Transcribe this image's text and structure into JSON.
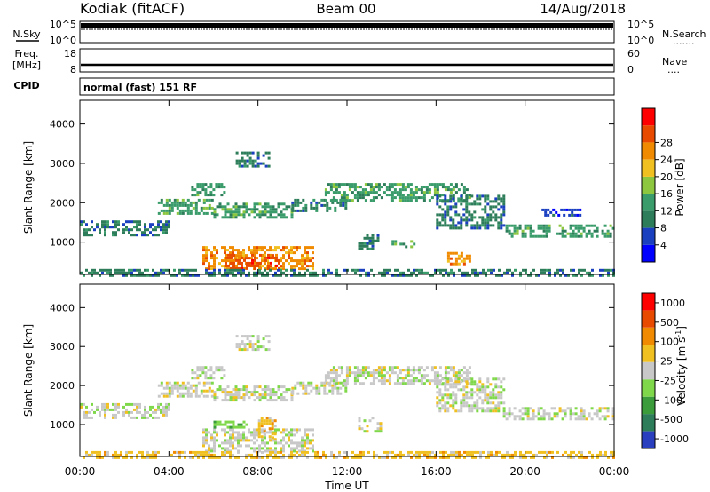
{
  "header": {
    "station": "Kodiak (fitACF)",
    "beam": "Beam 00",
    "date": "14/Aug/2018"
  },
  "panels": {
    "nsky": {
      "left_label": "N.Sky",
      "left_top": "10^5",
      "left_bottom": "10^0",
      "right_top": "10^5",
      "right_bottom": "10^0",
      "right_label": "N.Search",
      "right_dots": "......."
    },
    "freq": {
      "label_top": "Freq.",
      "label_unit": "[MHz]",
      "left_top": "18",
      "left_bottom": "8",
      "right_top": "60",
      "right_bottom": "0",
      "right_label": "Nave",
      "right_dots": "...."
    },
    "cpid": {
      "label": "CPID",
      "text": "normal (fast) 151 RF"
    }
  },
  "chart_data": [
    {
      "type": "heatmap",
      "title": "",
      "ylabel": "Slant Range [km]",
      "xlabel": "",
      "ylim": [
        180,
        4600
      ],
      "yticks": [
        "1000",
        "2000",
        "3000",
        "4000"
      ],
      "x_range_hours": [
        0,
        24
      ],
      "colorbar": {
        "label": "Power [dB]",
        "min": 0,
        "max": 32,
        "ticks": [
          "4",
          "8",
          "12",
          "16",
          "20",
          "24",
          "28"
        ],
        "colors": [
          "#0000ff",
          "#1a3fbf",
          "#2e7d5a",
          "#3a9c6a",
          "#8dc63f",
          "#f0c020",
          "#f08a00",
          "#e84a00",
          "#ff0000"
        ]
      },
      "regions": [
        {
          "t0": 0.0,
          "t1": 4.0,
          "r0": 1150,
          "r1": 1550,
          "level": 8
        },
        {
          "t0": 3.5,
          "t1": 6.0,
          "r0": 1700,
          "r1": 2100,
          "level": 12
        },
        {
          "t0": 5.0,
          "t1": 6.5,
          "r0": 2200,
          "r1": 2500,
          "level": 14
        },
        {
          "t0": 6.0,
          "t1": 9.5,
          "r0": 1600,
          "r1": 2000,
          "level": 14
        },
        {
          "t0": 7.0,
          "t1": 8.5,
          "r0": 2900,
          "r1": 3300,
          "level": 8
        },
        {
          "t0": 5.5,
          "t1": 10.5,
          "r0": 300,
          "r1": 900,
          "level": 24
        },
        {
          "t0": 6.5,
          "t1": 9.0,
          "r0": 350,
          "r1": 700,
          "level": 28
        },
        {
          "t0": 9.5,
          "t1": 12.0,
          "r0": 1800,
          "r1": 2100,
          "level": 8
        },
        {
          "t0": 11.0,
          "t1": 17.5,
          "r0": 2050,
          "r1": 2500,
          "level": 14
        },
        {
          "t0": 12.5,
          "t1": 13.5,
          "r0": 850,
          "r1": 1200,
          "level": 8
        },
        {
          "t0": 14.0,
          "t1": 15.0,
          "r0": 850,
          "r1": 1050,
          "level": 12
        },
        {
          "t0": 16.5,
          "t1": 17.5,
          "r0": 450,
          "r1": 750,
          "level": 22
        },
        {
          "t0": 16.0,
          "t1": 19.0,
          "r0": 1350,
          "r1": 2200,
          "level": 10
        },
        {
          "t0": 19.0,
          "t1": 24.0,
          "r0": 1150,
          "r1": 1450,
          "level": 12
        },
        {
          "t0": 20.5,
          "t1": 22.5,
          "r0": 1650,
          "r1": 1850,
          "level": 6
        },
        {
          "t0": 0.0,
          "t1": 24.0,
          "r0": 180,
          "r1": 320,
          "level": 10
        }
      ]
    },
    {
      "type": "heatmap",
      "title": "",
      "ylabel": "Slant Range [km]",
      "xlabel": "Time UT",
      "ylim": [
        180,
        4600
      ],
      "yticks": [
        "1000",
        "2000",
        "3000",
        "4000"
      ],
      "xticks": [
        "00:00",
        "04:00",
        "08:00",
        "12:00",
        "16:00",
        "20:00",
        "00:00"
      ],
      "x_range_hours": [
        0,
        24
      ],
      "colorbar": {
        "label": "Velocity [m s-1]",
        "label_main": "Velocity  [m s",
        "label_sup": "-1",
        "label_end": "]",
        "ticks": [
          "1000",
          "500",
          "100",
          "25",
          "-25",
          "-100",
          "-500",
          "-1000"
        ],
        "colors": [
          "#2a3fbf",
          "#2e7d5a",
          "#3a9c3a",
          "#7fd84a",
          "#c8c8c8",
          "#f0c020",
          "#f08a00",
          "#e84a00",
          "#ff0000"
        ]
      },
      "regions": [
        {
          "t0": 0.0,
          "t1": 4.0,
          "r0": 1150,
          "r1": 1550,
          "level": 4
        },
        {
          "t0": 3.5,
          "t1": 6.0,
          "r0": 1700,
          "r1": 2100,
          "level": 4
        },
        {
          "t0": 5.0,
          "t1": 6.5,
          "r0": 2200,
          "r1": 2500,
          "level": 4
        },
        {
          "t0": 6.0,
          "t1": 9.5,
          "r0": 1600,
          "r1": 2000,
          "level": 4
        },
        {
          "t0": 7.0,
          "t1": 8.5,
          "r0": 2900,
          "r1": 3300,
          "level": 4
        },
        {
          "t0": 5.5,
          "t1": 10.5,
          "r0": 300,
          "r1": 900,
          "level": 4
        },
        {
          "t0": 6.0,
          "t1": 7.5,
          "r0": 900,
          "r1": 1100,
          "level": 3
        },
        {
          "t0": 8.0,
          "t1": 8.8,
          "r0": 600,
          "r1": 1200,
          "level": 5
        },
        {
          "t0": 9.5,
          "t1": 12.0,
          "r0": 1800,
          "r1": 2100,
          "level": 4
        },
        {
          "t0": 11.0,
          "t1": 17.5,
          "r0": 2050,
          "r1": 2500,
          "level": 4
        },
        {
          "t0": 12.5,
          "t1": 13.5,
          "r0": 850,
          "r1": 1200,
          "level": 4
        },
        {
          "t0": 16.0,
          "t1": 19.0,
          "r0": 1350,
          "r1": 2200,
          "level": 4
        },
        {
          "t0": 19.0,
          "t1": 24.0,
          "r0": 1150,
          "r1": 1450,
          "level": 4
        },
        {
          "t0": 0.0,
          "t1": 24.0,
          "r0": 180,
          "r1": 320,
          "level": 5
        }
      ]
    }
  ]
}
